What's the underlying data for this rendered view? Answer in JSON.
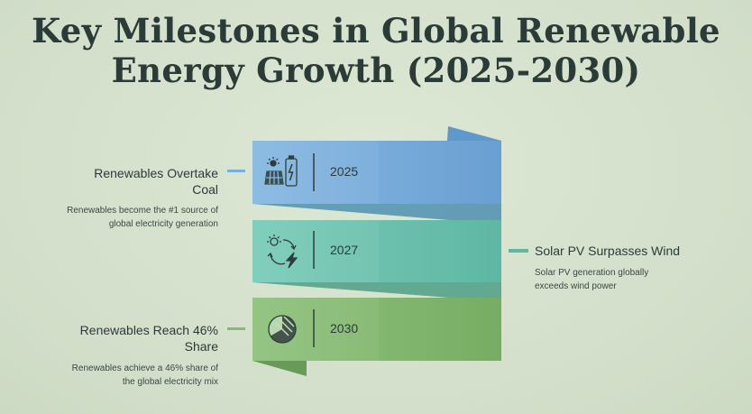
{
  "title": {
    "line1": "Key Milestones in Global Renewable",
    "line2": "Energy Growth (2025-2030)"
  },
  "milestones": [
    {
      "year": "2025",
      "title": "Renewables Overtake Coal",
      "description": "Renewables become the #1 source of global electricity generation",
      "icon": "solar-panel-battery-icon",
      "color": "#7aaedc",
      "side": "left"
    },
    {
      "year": "2027",
      "title": "Solar PV Surpasses Wind",
      "description": "Solar PV generation globally exceeds wind power",
      "icon": "sun-wind-cycle-icon",
      "color": "#6cc4b0",
      "side": "right"
    },
    {
      "year": "2030",
      "title": "Renewables Reach 46% Share",
      "description": "Renewables achieve a 46% share of the global electricity mix",
      "icon": "pie-share-icon",
      "color": "#84bb72",
      "side": "left"
    }
  ]
}
